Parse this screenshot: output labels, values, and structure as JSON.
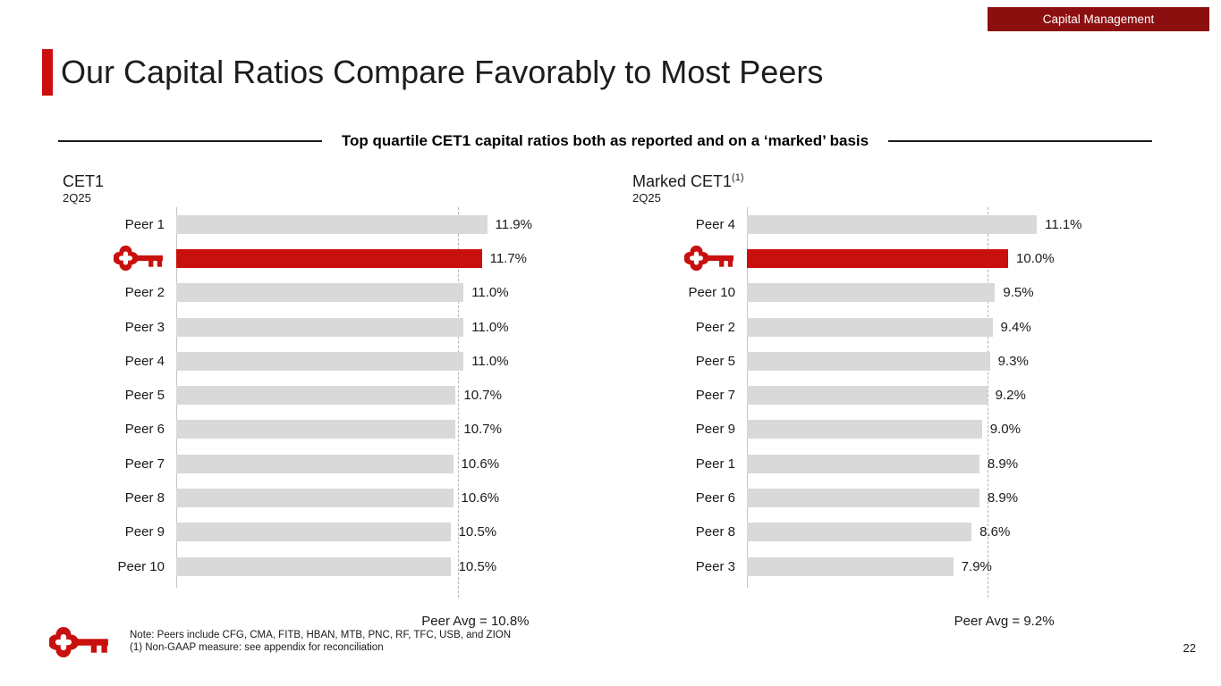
{
  "badge": {
    "label": "Capital Management"
  },
  "title": "Our Capital Ratios Compare Favorably to Most Peers",
  "subtitle": "Top quartile CET1 capital ratios both as reported and on a ‘marked’ basis",
  "colors": {
    "brand_red": "#c8100e",
    "badge_red": "#8c0f10",
    "accent_red": "#cc0e0e",
    "bar_gray": "#d9d9d9",
    "text": "#1a1a1a"
  },
  "chart_data": [
    {
      "type": "bar",
      "orientation": "horizontal",
      "title": "CET1",
      "title_sup": "",
      "subtitle": "2Q25",
      "categories": [
        "Peer 1",
        "Key",
        "Peer 2",
        "Peer 3",
        "Peer 4",
        "Peer 5",
        "Peer 6",
        "Peer 7",
        "Peer 8",
        "Peer 9",
        "Peer 10"
      ],
      "values": [
        11.9,
        11.7,
        11.0,
        11.0,
        11.0,
        10.7,
        10.7,
        10.6,
        10.6,
        10.5,
        10.5
      ],
      "labels": [
        "11.9%",
        "11.7%",
        "11.0%",
        "11.0%",
        "11.0%",
        "10.7%",
        "10.7%",
        "10.6%",
        "10.6%",
        "10.5%",
        "10.5%"
      ],
      "highlight_index": 1,
      "highlight_label_icon": "key-logo-icon",
      "avg_value": 10.8,
      "avg_label": "Peer Avg = 10.8%",
      "xlim": [
        0,
        12.5
      ],
      "grid": false,
      "legend": "none"
    },
    {
      "type": "bar",
      "orientation": "horizontal",
      "title": "Marked CET1",
      "title_sup": "(1)",
      "subtitle": "2Q25",
      "categories": [
        "Peer 4",
        "Key",
        "Peer 10",
        "Peer 2",
        "Peer 5",
        "Peer 7",
        "Peer 9",
        "Peer 1",
        "Peer 6",
        "Peer 8",
        "Peer 3"
      ],
      "values": [
        11.1,
        10.0,
        9.5,
        9.4,
        9.3,
        9.2,
        9.0,
        8.9,
        8.9,
        8.6,
        7.9
      ],
      "labels": [
        "11.1%",
        "10.0%",
        "9.5%",
        "9.4%",
        "9.3%",
        "9.2%",
        "9.0%",
        "8.9%",
        "8.9%",
        "8.6%",
        "7.9%"
      ],
      "highlight_index": 1,
      "highlight_label_icon": "key-logo-icon",
      "avg_value": 9.2,
      "avg_label": "Peer Avg = 9.2%",
      "xlim": [
        0,
        12.5
      ],
      "grid": false,
      "legend": "none"
    }
  ],
  "footer": {
    "note1": "Note: Peers include CFG, CMA, FITB, HBAN, MTB, PNC, RF, TFC, USB, and ZION",
    "note2": "(1) Non-GAAP measure: see appendix for reconciliation"
  },
  "page_number": "22"
}
